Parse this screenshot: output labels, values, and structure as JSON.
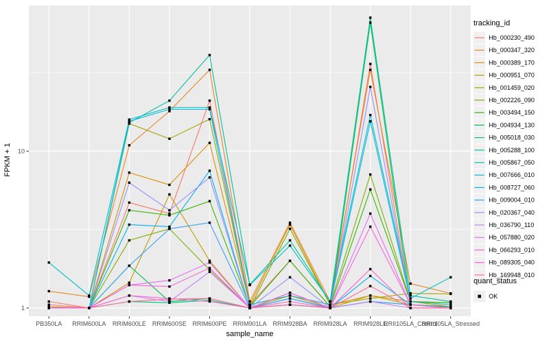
{
  "chart_data": {
    "type": "line",
    "xlabel": "sample_name",
    "ylabel": "FPKM + 1",
    "x_categories": [
      "PB350LA",
      "RRIM600LA",
      "RRIM600LE",
      "RRIM600SE",
      "RRIM600PE",
      "RRIM901LA",
      "RRIM928BA",
      "RRIM928LA",
      "RRIM928LE",
      "RRII105LA_Control",
      "RRII105LA_Stressed"
    ],
    "y_axis": {
      "scale": "log10",
      "tick_values": [
        1,
        10
      ],
      "tick_labels": [
        "1",
        "10"
      ],
      "minor_tick_values": [
        3.162,
        31.62
      ],
      "range": [
        0.886,
        84.9
      ]
    },
    "legend": {
      "series_title": "tracking_id",
      "status_title": "quant_status",
      "status_items": [
        {
          "label": "OK",
          "marker": "black-square"
        }
      ]
    },
    "panel_bg": "#EBEBEB",
    "grid_color": "#FFFFFF",
    "legend_key_bg": "#F0F0F0",
    "axis_text_color": "#4D4D4D",
    "tick_mark_color": "#333333",
    "marker_color": "#000000",
    "series": [
      {
        "name": "Hb_000230_490",
        "color": "#F8766D",
        "values": [
          1.1,
          1.0,
          4.7,
          4.0,
          21.0,
          1.05,
          2.0,
          1.02,
          36.0,
          1.05,
          1.0
        ]
      },
      {
        "name": "Hb_000347_320",
        "color": "#E88526",
        "values": [
          1.28,
          1.18,
          10.9,
          18.0,
          33.0,
          1.1,
          3.5,
          1.1,
          33.0,
          1.43,
          1.24
        ]
      },
      {
        "name": "Hb_000389_170",
        "color": "#D89000",
        "values": [
          1.0,
          1.0,
          7.3,
          6.1,
          11.3,
          1.05,
          3.4,
          1.05,
          1.2,
          1.1,
          1.02
        ]
      },
      {
        "name": "Hb_000951_070",
        "color": "#C09B00",
        "values": [
          1.02,
          1.0,
          1.45,
          5.3,
          2.0,
          1.0,
          1.2,
          1.0,
          1.2,
          1.05,
          1.0
        ]
      },
      {
        "name": "Hb_001459_020",
        "color": "#A3A500",
        "values": [
          1.0,
          1.0,
          15.0,
          12.0,
          16.0,
          1.05,
          1.2,
          1.05,
          1.15,
          1.24,
          1.23
        ]
      },
      {
        "name": "Hb_002226_090",
        "color": "#7CAE00",
        "values": [
          1.0,
          1.0,
          2.7,
          3.2,
          1.75,
          1.0,
          3.2,
          1.05,
          7.1,
          1.1,
          1.08
        ]
      },
      {
        "name": "Hb_003494_150",
        "color": "#39B600",
        "values": [
          1.0,
          1.0,
          4.2,
          3.9,
          4.8,
          1.02,
          2.0,
          1.02,
          5.7,
          1.1,
          1.08
        ]
      },
      {
        "name": "Hb_004934_130",
        "color": "#00BB4E",
        "values": [
          1.0,
          1.0,
          1.86,
          1.1,
          1.15,
          1.0,
          1.05,
          1.0,
          66.0,
          1.05,
          1.02
        ]
      },
      {
        "name": "Hb_005018_030",
        "color": "#00C079",
        "values": [
          1.0,
          1.0,
          1.1,
          1.08,
          1.12,
          1.0,
          1.05,
          1.0,
          1.1,
          1.05,
          1.02
        ]
      },
      {
        "name": "Hb_005288_100",
        "color": "#00C19C",
        "values": [
          1.0,
          1.0,
          15.2,
          21.0,
          41.0,
          1.41,
          2.7,
          1.1,
          71.0,
          1.2,
          1.1
        ]
      },
      {
        "name": "Hb_005867_050",
        "color": "#00BFC4",
        "values": [
          1.95,
          1.2,
          15.9,
          19.0,
          19.0,
          1.4,
          2.5,
          1.1,
          17.0,
          1.15,
          1.57
        ]
      },
      {
        "name": "Hb_007666_010",
        "color": "#00BAE0",
        "values": [
          1.0,
          1.0,
          15.5,
          18.5,
          18.5,
          1.05,
          1.2,
          1.05,
          15.5,
          1.1,
          1.05
        ]
      },
      {
        "name": "Hb_008727_060",
        "color": "#00B0F6",
        "values": [
          1.0,
          1.0,
          3.4,
          3.3,
          7.5,
          1.0,
          1.15,
          1.0,
          1.6,
          1.05,
          1.0
        ]
      },
      {
        "name": "Hb_009004_010",
        "color": "#35A2FF",
        "values": [
          1.0,
          1.0,
          1.86,
          3.2,
          3.5,
          1.0,
          1.15,
          1.0,
          1.1,
          1.05,
          1.0
        ]
      },
      {
        "name": "Hb_020367_040",
        "color": "#9590FF",
        "values": [
          1.0,
          1.0,
          6.3,
          4.2,
          6.8,
          1.0,
          1.57,
          1.0,
          25.7,
          1.05,
          1.0
        ]
      },
      {
        "name": "Hb_036790_110",
        "color": "#C77CFF",
        "values": [
          1.0,
          1.0,
          1.2,
          1.1,
          1.7,
          1.0,
          1.05,
          1.0,
          1.1,
          1.0,
          1.0
        ]
      },
      {
        "name": "Hb_057880_020",
        "color": "#E76BF3",
        "values": [
          1.0,
          1.0,
          1.4,
          1.5,
          1.95,
          1.0,
          1.25,
          1.0,
          4.0,
          1.05,
          1.0
        ]
      },
      {
        "name": "Hb_066293_010",
        "color": "#FA62DB",
        "values": [
          1.0,
          1.0,
          1.4,
          1.37,
          1.8,
          1.0,
          1.25,
          1.0,
          3.3,
          1.05,
          1.0
        ]
      },
      {
        "name": "Hb_089305_040",
        "color": "#FF61C9",
        "values": [
          1.0,
          1.0,
          1.2,
          1.15,
          1.1,
          1.0,
          1.1,
          1.0,
          1.77,
          1.0,
          1.0
        ]
      },
      {
        "name": "Hb_169948_010",
        "color": "#FF6A98",
        "values": [
          1.05,
          1.0,
          1.1,
          1.14,
          1.15,
          1.0,
          1.05,
          1.0,
          1.38,
          1.0,
          1.0
        ]
      }
    ]
  }
}
